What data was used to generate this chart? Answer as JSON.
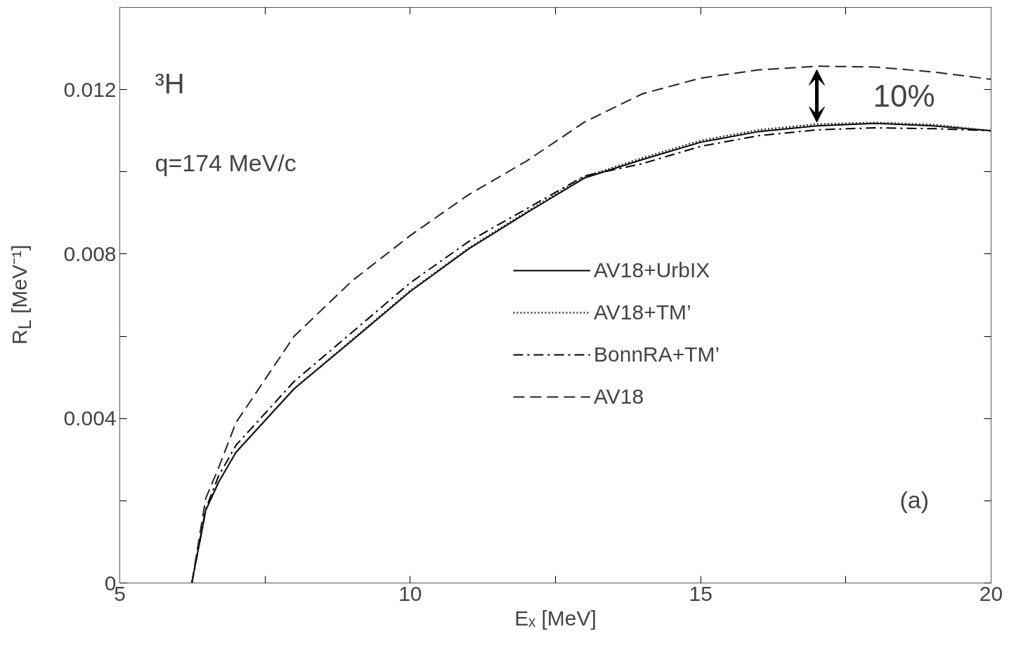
{
  "chart_data": {
    "type": "line",
    "xlabel": "Eₓ [MeV]",
    "ylabel": "R$_{L}$ [MeV⁻¹]",
    "xlim": [
      5,
      20
    ],
    "ylim": [
      0,
      0.014
    ],
    "xticks": [
      5,
      {
        "value": 7.5,
        "label": null
      },
      10,
      {
        "value": 12.5,
        "label": null
      },
      15,
      {
        "value": 17.5,
        "label": null
      },
      20
    ],
    "yticks": [
      {
        "value": 0,
        "label": "0"
      },
      {
        "value": 0.002,
        "label": null
      },
      0.004,
      {
        "value": 0.006,
        "label": null
      },
      0.008,
      {
        "value": 0.01,
        "label": null
      },
      0.012
    ],
    "x": [
      6.24,
      6.48,
      6.7,
      7,
      8,
      9,
      10,
      11,
      12,
      13,
      14,
      15,
      16,
      17,
      18,
      19,
      20
    ],
    "series": [
      {
        "name": "AV18+UrbIX",
        "color": "#000000",
        "line_style": "solid",
        "values": [
          0,
          0.00177,
          0.00245,
          0.00318,
          0.00472,
          0.0059,
          0.00709,
          0.00812,
          0.009,
          0.00985,
          0.0103,
          0.01072,
          0.01098,
          0.01112,
          0.01118,
          0.01112,
          0.011
        ]
      },
      {
        "name": "AV18+TM’",
        "color": "#333333",
        "line_style": "dotted",
        "values": [
          0,
          0.00177,
          0.00245,
          0.00318,
          0.00473,
          0.00592,
          0.00711,
          0.00814,
          0.00903,
          0.00988,
          0.01034,
          0.01076,
          0.01102,
          0.01116,
          0.0112,
          0.01115,
          0.011
        ]
      },
      {
        "name": "BonnRA+TM’",
        "color": "#000000",
        "line_style": "dashdot",
        "values": [
          0,
          0.0018,
          0.0026,
          0.00335,
          0.0049,
          0.0061,
          0.0073,
          0.0083,
          0.0091,
          0.0099,
          0.0102,
          0.01062,
          0.01088,
          0.01102,
          0.01107,
          0.01105,
          0.011
        ]
      },
      {
        "name": "AV18",
        "color": "#222222",
        "line_style": "dashed",
        "values": [
          0,
          0.00206,
          0.0028,
          0.0039,
          0.006,
          0.00735,
          0.00845,
          0.00944,
          0.01026,
          0.01121,
          0.0119,
          0.01228,
          0.01248,
          0.01257,
          0.01255,
          0.01243,
          0.01225
        ]
      }
    ],
    "legend": "right",
    "grid": false,
    "annotations": [
      "³H",
      "q=174 MeV/c",
      "(a)",
      "10%"
    ]
  }
}
